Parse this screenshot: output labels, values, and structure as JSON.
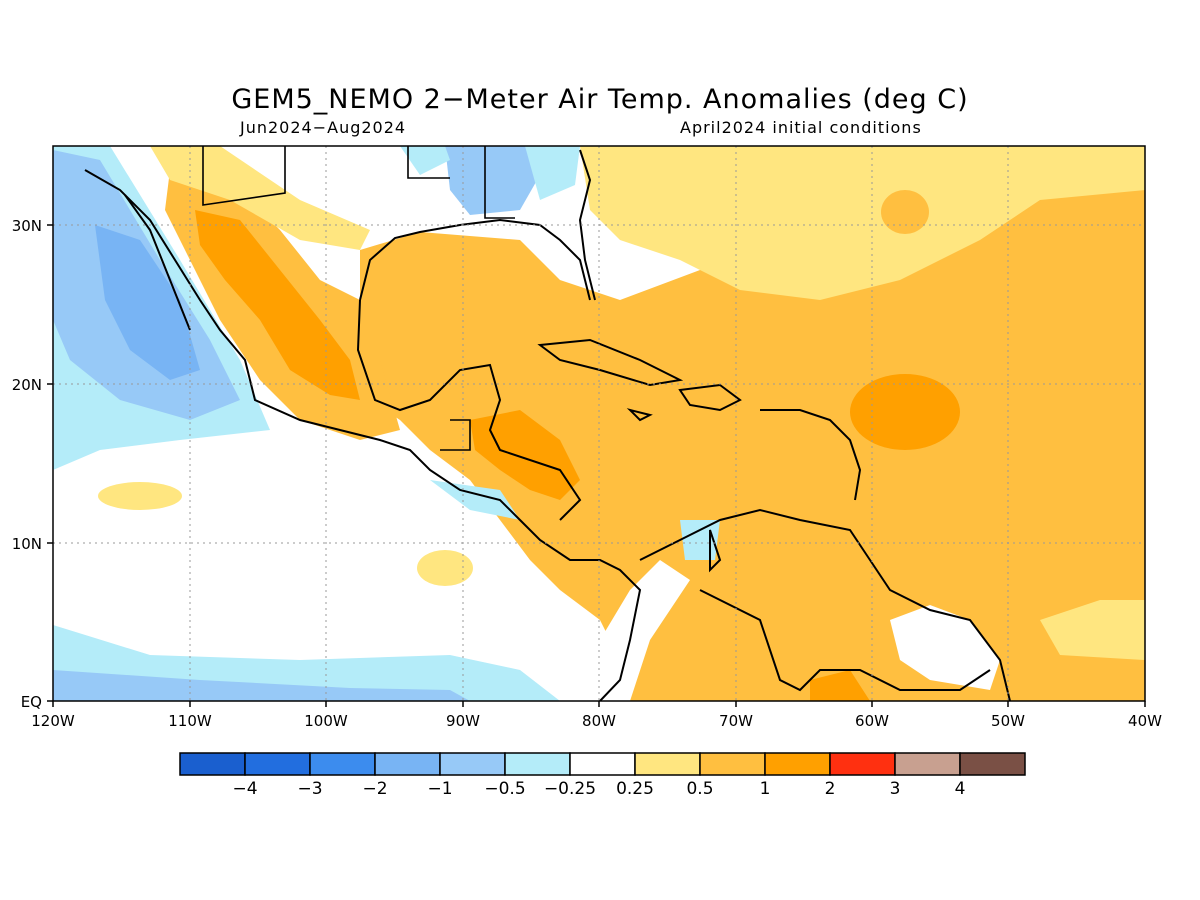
{
  "title": "GEM5_NEMO 2−Meter Air Temp. Anomalies (deg C)",
  "subtitle_left": "Jun2024−Aug2024",
  "subtitle_right": "April2024 initial conditions",
  "map": {
    "region": "Caribbean / Central America",
    "lon_range": [
      -120,
      -40
    ],
    "lat_range": [
      0,
      35
    ],
    "x_ticks": [
      "120W",
      "110W",
      "100W",
      "90W",
      "80W",
      "70W",
      "60W",
      "50W",
      "40W"
    ],
    "y_ticks": [
      "EQ",
      "10N",
      "20N",
      "30N"
    ],
    "grid": "dotted"
  },
  "colorbar": {
    "colors": [
      "#1a5fcf",
      "#226edf",
      "#3c8cee",
      "#78b4f4",
      "#97c9f7",
      "#b4ecf9",
      "#ffffff",
      "#ffe680",
      "#ffbf40",
      "#ffa000",
      "#ff3010",
      "#c8a090",
      "#7a5045"
    ],
    "labels": [
      "−4",
      "−3",
      "−2",
      "−1",
      "−0.5",
      "−0.25",
      "0.25",
      "0.5",
      "1",
      "2",
      "3",
      "4"
    ]
  }
}
